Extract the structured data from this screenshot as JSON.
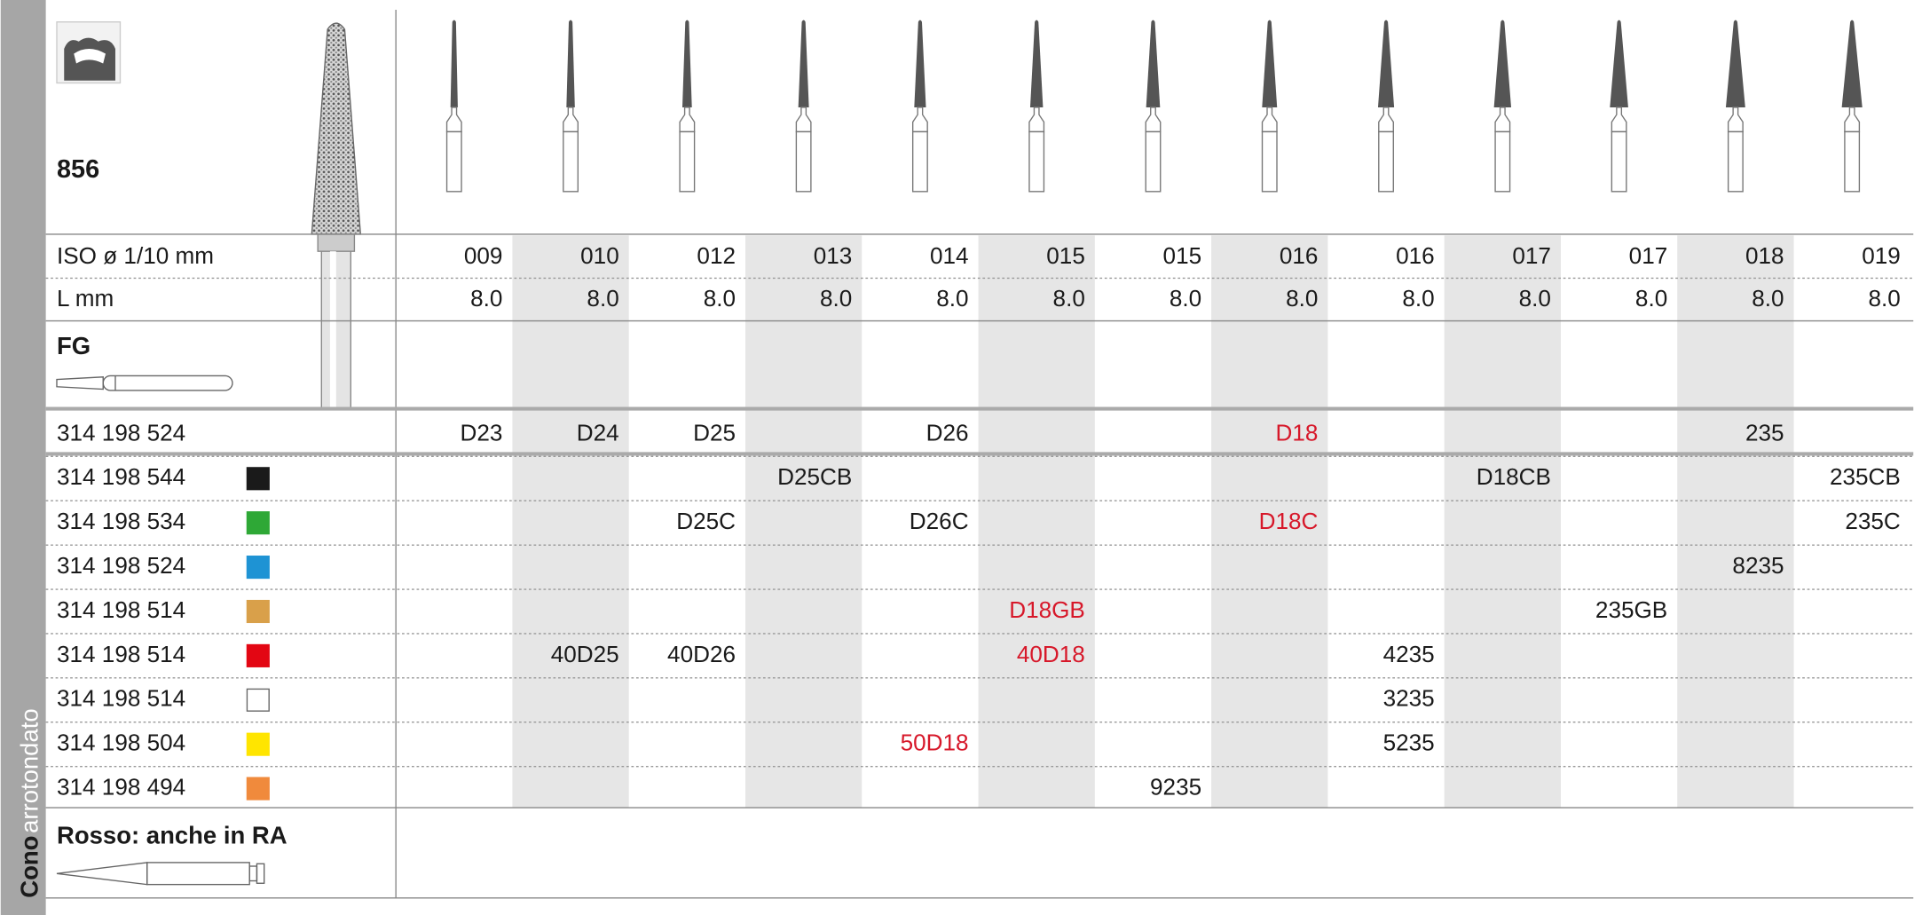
{
  "side_label": {
    "bold": "Cono",
    "light": "arrotondato"
  },
  "shape": "856",
  "iso_label": "ISO ø 1/10 mm",
  "length_label": "L mm",
  "shank": "FG",
  "note": "Rosso: anche in RA",
  "highlight_color": "#d7182a",
  "iso": [
    "009",
    "010",
    "012",
    "013",
    "014",
    "015",
    "015",
    "016",
    "016",
    "017",
    "017",
    "018",
    "019"
  ],
  "length": [
    "8.0",
    "8.0",
    "8.0",
    "8.0",
    "8.0",
    "8.0",
    "8.0",
    "8.0",
    "8.0",
    "8.0",
    "8.0",
    "8.0",
    "8.0"
  ],
  "rows": [
    {
      "code": "314 198 524",
      "swatch": null,
      "cells": [
        "D23",
        "D24",
        "D25",
        null,
        "D26",
        null,
        null,
        {
          "text": "D18",
          "highlight": true
        },
        null,
        null,
        null,
        "235",
        null
      ]
    },
    {
      "code": "314 198 544",
      "swatch": "#1a1a1a",
      "cells": [
        null,
        null,
        null,
        "D25CB",
        null,
        null,
        null,
        null,
        null,
        "D18CB",
        null,
        null,
        "235CB"
      ]
    },
    {
      "code": "314 198 534",
      "swatch": "#2ea836",
      "cells": [
        null,
        null,
        "D25C",
        null,
        "D26C",
        null,
        null,
        {
          "text": "D18C",
          "highlight": true
        },
        null,
        null,
        null,
        null,
        "235C"
      ]
    },
    {
      "code": "314 198 524",
      "swatch": "#1e93d4",
      "cells": [
        null,
        null,
        null,
        null,
        null,
        null,
        null,
        null,
        null,
        null,
        null,
        "8235",
        null
      ]
    },
    {
      "code": "314 198 514",
      "swatch": "#d9a04a",
      "cells": [
        null,
        null,
        null,
        null,
        null,
        {
          "text": "D18GB",
          "highlight": true
        },
        null,
        null,
        null,
        null,
        "235GB",
        null,
        null
      ]
    },
    {
      "code": "314 198 514",
      "swatch": "#e30613",
      "cells": [
        null,
        "40D25",
        "40D26",
        null,
        null,
        {
          "text": "40D18",
          "highlight": true
        },
        null,
        null,
        "4235",
        null,
        null,
        null,
        null
      ]
    },
    {
      "code": "314 198 514",
      "swatch": "#ffffff",
      "cells": [
        null,
        null,
        null,
        null,
        null,
        null,
        null,
        null,
        "3235",
        null,
        null,
        null,
        null
      ]
    },
    {
      "code": "314 198 504",
      "swatch": "#ffe500",
      "cells": [
        null,
        null,
        null,
        null,
        {
          "text": "50D18",
          "highlight": true
        },
        null,
        null,
        null,
        "5235",
        null,
        null,
        null,
        null
      ]
    },
    {
      "code": "314 198 494",
      "swatch": "#f08a3c",
      "cells": [
        null,
        null,
        null,
        null,
        null,
        null,
        "9235",
        null,
        null,
        null,
        null,
        null,
        null
      ]
    }
  ]
}
